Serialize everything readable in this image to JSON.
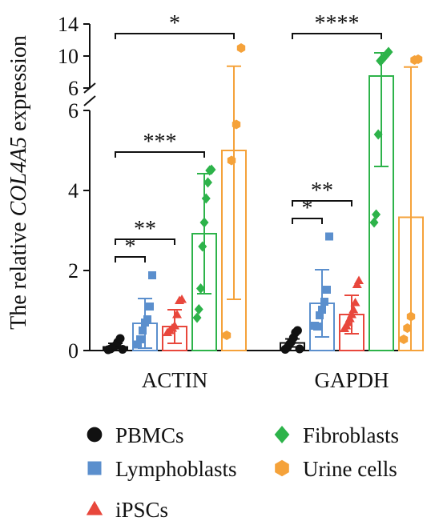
{
  "colors": {
    "PBMCs": "#111111",
    "Lymphoblasts": "#5b8fcd",
    "iPSCs": "#e8473c",
    "Fibroblasts": "#2db34a",
    "Urine cells": "#f5a23a",
    "axis": "#111111"
  },
  "chart_data": {
    "type": "bar",
    "ylabel": {
      "prefix": "The relative ",
      "gene": "COL4A5",
      "suffix": " expression"
    },
    "categories": [
      "ACTIN",
      "GAPDH"
    ],
    "y_axis": {
      "type": "broken",
      "lower_range": [
        0,
        6
      ],
      "upper_range": [
        6,
        14
      ],
      "lower_ticks": [
        "0",
        "2",
        "4",
        "6"
      ],
      "upper_ticks": [
        "6",
        "10",
        "14"
      ]
    },
    "grid": false,
    "legend_position": "bottom",
    "series": [
      {
        "name": "PBMCs",
        "marker": "circle",
        "means": [
          0.09,
          0.19
        ],
        "sd": [
          0.09,
          0.1
        ],
        "points": [
          [
            0.02,
            0.04,
            0.08,
            0.12,
            0.21,
            0.3,
            0.03
          ],
          [
            0.03,
            0.07,
            0.15,
            0.22,
            0.32,
            0.45,
            0.5,
            0.04
          ]
        ]
      },
      {
        "name": "Lymphoblasts",
        "marker": "square",
        "means": [
          0.68,
          1.18
        ],
        "sd": [
          0.62,
          0.84
        ],
        "points": [
          [
            0.15,
            0.28,
            0.5,
            0.7,
            0.78,
            1.1,
            1.88
          ],
          [
            0.62,
            0.6,
            0.88,
            1.02,
            1.22,
            1.52,
            2.85
          ]
        ]
      },
      {
        "name": "iPSCs",
        "marker": "triangle",
        "means": [
          0.6,
          0.9
        ],
        "sd": [
          0.42,
          0.48
        ],
        "points": [
          [
            0.45,
            0.5,
            0.56,
            0.62,
            0.9,
            1.25,
            1.28
          ],
          [
            0.55,
            0.62,
            0.7,
            0.8,
            0.9,
            1.02,
            1.2,
            1.65,
            1.75
          ]
        ]
      },
      {
        "name": "Fibroblasts",
        "marker": "diamond",
        "means": [
          2.92,
          7.5
        ],
        "sd": [
          1.5,
          2.9
        ],
        "points": [
          [
            0.82,
            1.03,
            1.55,
            2.6,
            3.2,
            3.8,
            4.2,
            4.5,
            4.52
          ],
          [
            3.2,
            3.4,
            5.4,
            9.4,
            9.6,
            9.9,
            10.2,
            10.5
          ]
        ]
      },
      {
        "name": "Urine cells",
        "marker": "hexagon",
        "means": [
          5.0,
          3.33
        ],
        "sd": [
          3.72,
          5.3
        ],
        "points": [
          [
            0.38,
            4.75,
            5.65,
            11.0
          ],
          [
            0.28,
            0.56,
            0.85,
            9.5,
            9.6
          ]
        ]
      }
    ],
    "significance": [
      {
        "group": "ACTIN",
        "from": "PBMCs",
        "to": "Lymphoblasts",
        "label": "*"
      },
      {
        "group": "ACTIN",
        "from": "PBMCs",
        "to": "iPSCs",
        "label": "**"
      },
      {
        "group": "ACTIN",
        "from": "PBMCs",
        "to": "Fibroblasts",
        "label": "***"
      },
      {
        "group": "ACTIN",
        "from": "PBMCs",
        "to": "Urine cells",
        "label": "*"
      },
      {
        "group": "GAPDH",
        "from": "PBMCs",
        "to": "Lymphoblasts",
        "label": "*"
      },
      {
        "group": "GAPDH",
        "from": "PBMCs",
        "to": "iPSCs",
        "label": "**"
      },
      {
        "group": "GAPDH",
        "from": "PBMCs",
        "to": "Fibroblasts",
        "label": "****"
      }
    ]
  }
}
